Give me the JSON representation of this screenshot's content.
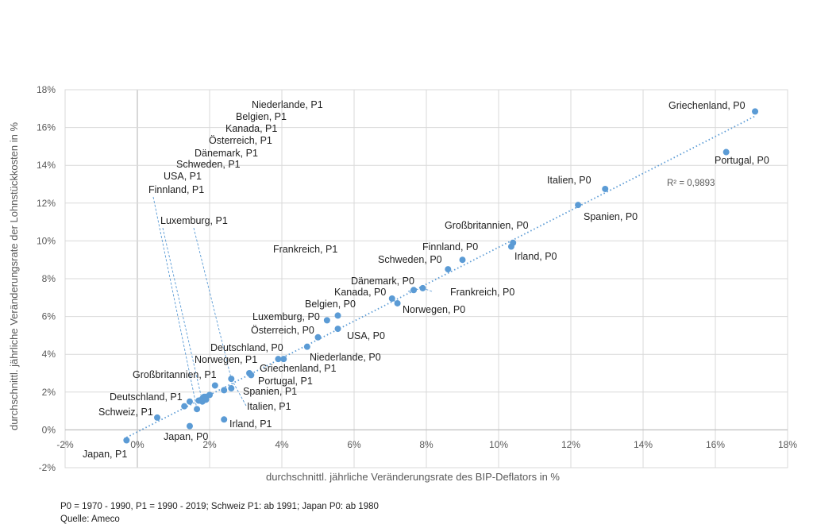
{
  "chart_data": {
    "type": "scatter",
    "xlabel": "durchschnittl. jährliche Veränderungsrate des BIP-Deflators in %",
    "ylabel": "durchschnittl. jährliche Veränderungsrate der Lohnstückkosten in %",
    "xlim": [
      -2,
      18
    ],
    "ylim": [
      -2,
      18
    ],
    "x_ticks": [
      -2,
      0,
      2,
      4,
      6,
      8,
      10,
      12,
      14,
      16,
      18
    ],
    "y_ticks": [
      -2,
      0,
      2,
      4,
      6,
      8,
      10,
      12,
      14,
      16,
      18
    ],
    "x_tick_labels": [
      "-2%",
      "0%",
      "2%",
      "4%",
      "6%",
      "8%",
      "10%",
      "12%",
      "14%",
      "16%",
      "18%"
    ],
    "y_tick_labels": [
      "-2%",
      "0%",
      "2%",
      "4%",
      "6%",
      "8%",
      "10%",
      "12%",
      "14%",
      "16%",
      "18%"
    ],
    "grid": true,
    "trendline": {
      "type": "linear",
      "from": [
        -0.3,
        -0.4
      ],
      "to": [
        17.1,
        16.6
      ],
      "r2_label": "R² = 0,9893"
    },
    "points": [
      {
        "label": "Griechenland, P0",
        "x": 17.1,
        "y": 16.85
      },
      {
        "label": "Portugal, P0",
        "x": 16.3,
        "y": 14.7
      },
      {
        "label": "Italien, P0",
        "x": 12.95,
        "y": 12.75
      },
      {
        "label": "Spanien, P0",
        "x": 12.2,
        "y": 11.9
      },
      {
        "label": "Großbritannien, P0",
        "x": 10.4,
        "y": 9.9
      },
      {
        "label": "Irland, P0",
        "x": 10.35,
        "y": 9.7
      },
      {
        "label": "Finnland, P0",
        "x": 9.0,
        "y": 9.0
      },
      {
        "label": "Schweden, P0",
        "x": 8.6,
        "y": 8.5
      },
      {
        "label": "Frankreich, P0",
        "x": 7.9,
        "y": 7.5
      },
      {
        "label": "Dänemark, P0",
        "x": 7.65,
        "y": 7.4
      },
      {
        "label": "Kanada, P0",
        "x": 7.05,
        "y": 6.95
      },
      {
        "label": "Norwegen, P0",
        "x": 7.2,
        "y": 6.7
      },
      {
        "label": "Belgien, P0",
        "x": 5.55,
        "y": 6.05
      },
      {
        "label": "Luxemburg, P0",
        "x": 5.25,
        "y": 5.8
      },
      {
        "label": "USA, P0",
        "x": 5.55,
        "y": 5.35
      },
      {
        "label": "Österreich, P0",
        "x": 5.0,
        "y": 4.9
      },
      {
        "label": "Deutschland, P0",
        "x": 4.7,
        "y": 4.4
      },
      {
        "label": "Niederlande, P0",
        "x": 4.05,
        "y": 3.75
      },
      {
        "label": "Griechenland, P1",
        "x": 3.9,
        "y": 3.75
      },
      {
        "label": "Portugal, P1",
        "x": 3.1,
        "y": 3.0
      },
      {
        "label": "Spanien, P1",
        "x": 3.15,
        "y": 2.9
      },
      {
        "label": "Italien, P1",
        "x": 2.6,
        "y": 2.7
      },
      {
        "label": "Frankreich, P1",
        "x": 2.6,
        "y": 2.2
      },
      {
        "label": "Großbritannien, P1",
        "x": 2.15,
        "y": 2.35
      },
      {
        "label": "Norwegen, P1",
        "x": 2.4,
        "y": 2.1
      },
      {
        "label": "Luxemburg, P1",
        "x": 2.0,
        "y": 1.85
      },
      {
        "label": "Niederlande, P1",
        "x": 1.9,
        "y": 1.75
      },
      {
        "label": "Belgien, P1",
        "x": 1.85,
        "y": 1.75
      },
      {
        "label": "Kanada, P1",
        "x": 1.8,
        "y": 1.65
      },
      {
        "label": "Österreich, P1",
        "x": 1.9,
        "y": 1.6
      },
      {
        "label": "Dänemark, P1",
        "x": 1.75,
        "y": 1.55
      },
      {
        "label": "Schweden, P1",
        "x": 1.7,
        "y": 1.55
      },
      {
        "label": "USA, P1",
        "x": 1.8,
        "y": 1.5
      },
      {
        "label": "Finnland, P1",
        "x": 1.65,
        "y": 1.1
      },
      {
        "label": "Deutschland, P1",
        "x": 1.45,
        "y": 1.5
      },
      {
        "label": "Schweiz, P1",
        "x": 1.3,
        "y": 1.25
      },
      {
        "label": "Irland, P1",
        "x": 2.4,
        "y": 0.55
      },
      {
        "label": "Schweiz",
        "x": 0.55,
        "y": 0.65
      },
      {
        "label": "Japan, P0",
        "x": 1.45,
        "y": 0.2
      },
      {
        "label": "Japan, P1",
        "x": -0.3,
        "y": -0.55
      }
    ]
  },
  "footnote": {
    "line1": "P0 = 1970 - 1990, P1 = 1990 - 2019; Schweiz P1: ab 1991; Japan P0: ab 1980",
    "line2": "Quelle: Ameco"
  },
  "labels_visible": {
    "Niederlande, P1": "Niederlande, P1",
    "Belgien, P1": "Belgien, P1",
    "Kanada, P1": "Kanada, P1",
    "Österreich, P1": "Österreich, P1",
    "Dänemark, P1": "Dänemark, P1",
    "Schweden, P1": "Schweden, P1",
    "USA, P1": "USA, P1",
    "Finnland, P1": "Finnland, P1",
    "Luxemburg, P1": "Luxemburg, P1",
    "Frankreich, P1": "Frankreich, P1"
  }
}
